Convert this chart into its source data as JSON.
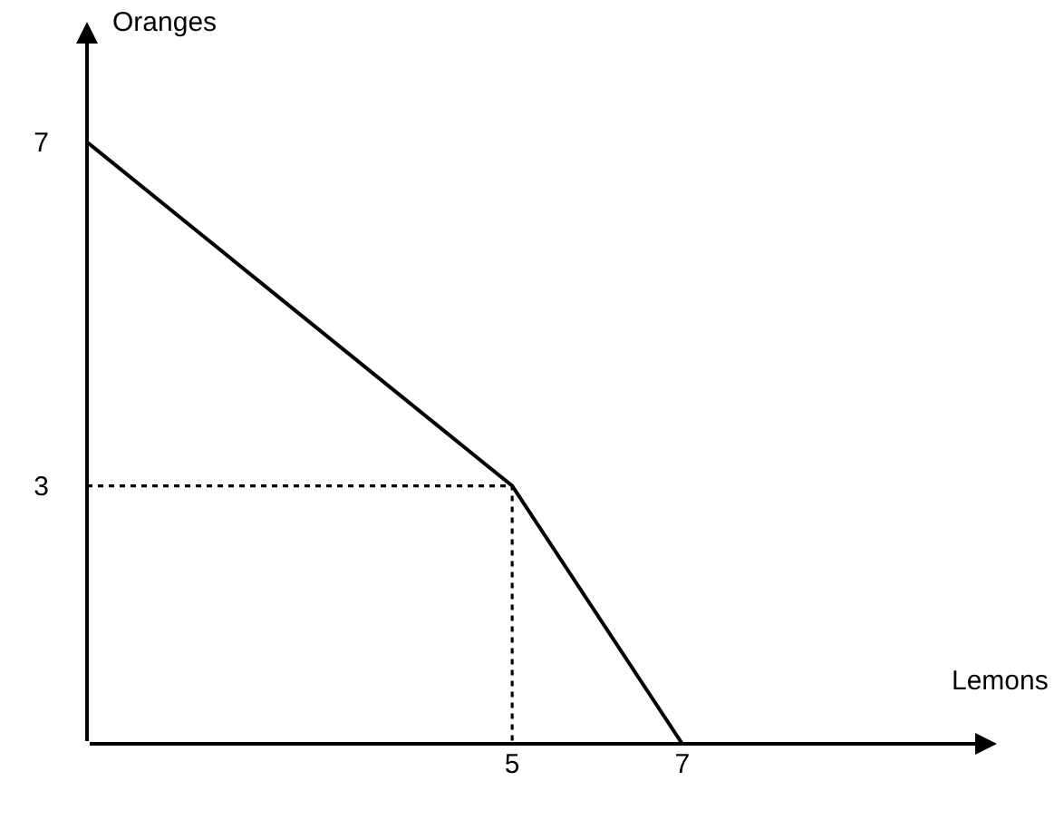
{
  "chart_data": {
    "type": "line",
    "xlabel": "Lemons",
    "ylabel": "Oranges",
    "xlim": [
      0,
      10.7
    ],
    "ylim": [
      0,
      8.4
    ],
    "xticks": [
      5,
      7
    ],
    "yticks": [
      3,
      7
    ],
    "marker": "none",
    "series": [
      {
        "x": [
          0,
          5,
          7
        ],
        "values": [
          7,
          3,
          0
        ],
        "color": "#000000",
        "line_style": "solid"
      },
      {
        "x": [
          0,
          5,
          5
        ],
        "values": [
          3,
          3,
          0
        ],
        "color": "#000000",
        "line_style": "dotted"
      }
    ]
  }
}
